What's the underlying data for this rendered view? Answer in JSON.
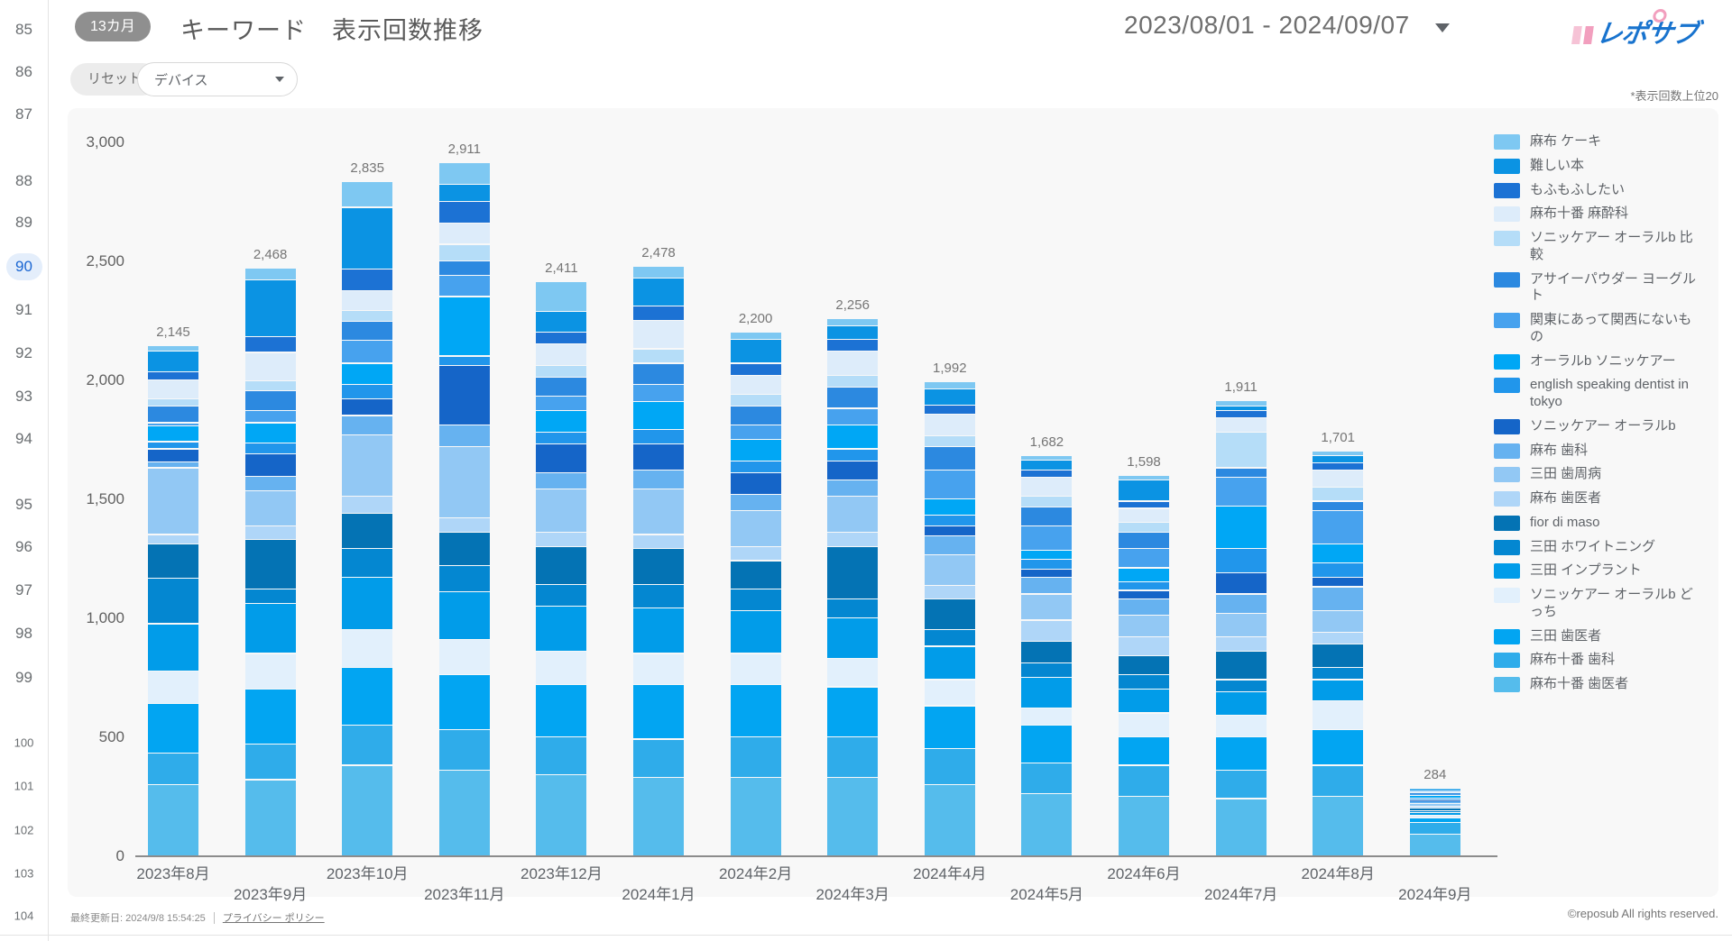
{
  "sidebar": {
    "pages": [
      "85",
      "86",
      "87",
      "88",
      "89",
      "90",
      "91",
      "92",
      "93",
      "94",
      "95",
      "96",
      "97",
      "98",
      "99",
      "100",
      "101",
      "102",
      "103",
      "104"
    ],
    "active_page": "90"
  },
  "header": {
    "badge": "13カ月",
    "title": "キーワード　表示回数推移",
    "date_range": "2023/08/01 - 2024/09/07",
    "brand": "レポサブ"
  },
  "controls": {
    "reset_label": "リセット",
    "device_label": "デバイス",
    "note": "*表示回数上位20"
  },
  "footer": {
    "last_updated": "最終更新日: 2024/9/8 15:54:25",
    "privacy_link": "プライバシー ポリシー",
    "copyright": "©reposub All rights reserved."
  },
  "chart_data": {
    "type": "bar",
    "stacked": true,
    "title": "キーワード 表示回数推移",
    "legend_position": "right",
    "grid": false,
    "ylim": [
      0,
      3000
    ],
    "yticks": [
      0,
      500,
      1000,
      1500,
      2000,
      2500,
      3000
    ],
    "categories": [
      "2023年8月",
      "2023年9月",
      "2023年10月",
      "2023年11月",
      "2023年12月",
      "2024年1月",
      "2024年2月",
      "2024年3月",
      "2024年4月",
      "2024年5月",
      "2024年6月",
      "2024年7月",
      "2024年8月",
      "2024年9月"
    ],
    "totals": [
      2145,
      2468,
      2835,
      2911,
      2411,
      2478,
      2200,
      2256,
      1992,
      1682,
      1598,
      1911,
      1701,
      284
    ],
    "stack_note": "values are visual estimates; bottom of each bar is the last series, top is the first series",
    "series": [
      {
        "name": "麻布 ケーキ",
        "color": "#7EC8F2",
        "values": [
          25,
          48,
          110,
          90,
          125,
          50,
          30,
          30,
          30,
          20,
          20,
          20,
          20,
          2
        ]
      },
      {
        "name": "難しい本",
        "color": "#0B93E3",
        "values": [
          85,
          240,
          260,
          70,
          86,
          118,
          100,
          56,
          67,
          40,
          88,
          21,
          31,
          3
        ]
      },
      {
        "name": "もふもふしたい",
        "color": "#1C72D4",
        "values": [
          35,
          65,
          90,
          91,
          50,
          60,
          50,
          50,
          40,
          32,
          30,
          30,
          30,
          3
        ]
      },
      {
        "name": "麻布十番 麻酔科",
        "color": "#DDECFA",
        "values": [
          80,
          120,
          85,
          90,
          90,
          120,
          80,
          100,
          90,
          80,
          60,
          60,
          70,
          4
        ]
      },
      {
        "name": "ソニッケアー オーラルb 比較",
        "color": "#B5DDF8",
        "values": [
          30,
          40,
          45,
          70,
          50,
          60,
          50,
          50,
          45,
          45,
          40,
          150,
          60,
          6
        ]
      },
      {
        "name": "アサイーパウダー ヨーグルト",
        "color": "#2C89E0",
        "values": [
          70,
          85,
          80,
          60,
          80,
          90,
          80,
          90,
          100,
          80,
          70,
          40,
          40,
          6
        ]
      },
      {
        "name": "関東にあって関西にないもの",
        "color": "#47A2EE",
        "values": [
          15,
          50,
          95,
          90,
          60,
          70,
          60,
          70,
          120,
          100,
          80,
          120,
          140,
          8
        ]
      },
      {
        "name": "オーラルb ソニッケアー",
        "color": "#00A7F5",
        "values": [
          65,
          85,
          90,
          250,
          90,
          120,
          90,
          100,
          70,
          40,
          60,
          180,
          80,
          10
        ]
      },
      {
        "name": "english speaking dentist in tokyo",
        "color": "#2196EB",
        "values": [
          30,
          45,
          60,
          40,
          50,
          60,
          50,
          50,
          45,
          40,
          35,
          100,
          60,
          6
        ]
      },
      {
        "name": "ソニッケアー オーラルb",
        "color": "#1565C8",
        "values": [
          55,
          95,
          70,
          250,
          120,
          110,
          90,
          80,
          40,
          35,
          35,
          90,
          40,
          6
        ]
      },
      {
        "name": "麻布 歯科",
        "color": "#66B2F0",
        "values": [
          25,
          60,
          80,
          90,
          70,
          80,
          70,
          70,
          80,
          70,
          70,
          80,
          100,
          10
        ]
      },
      {
        "name": "三田 歯周病",
        "color": "#92C8F4",
        "values": [
          280,
          150,
          260,
          300,
          180,
          190,
          150,
          150,
          130,
          110,
          90,
          100,
          90,
          12
        ]
      },
      {
        "name": "麻布 歯医者",
        "color": "#AFD6F8",
        "values": [
          40,
          55,
          70,
          60,
          60,
          60,
          60,
          60,
          55,
          90,
          80,
          60,
          50,
          8
        ]
      },
      {
        "name": "fior di maso",
        "color": "#0473B4",
        "values": [
          145,
          210,
          150,
          140,
          160,
          150,
          120,
          220,
          130,
          90,
          80,
          120,
          100,
          10
        ]
      },
      {
        "name": "三田 ホワイトニング",
        "color": "#0487D1",
        "values": [
          190,
          60,
          120,
          110,
          90,
          100,
          90,
          80,
          70,
          60,
          60,
          50,
          50,
          8
        ]
      },
      {
        "name": "三田 インプラント",
        "color": "#019CE9",
        "values": [
          200,
          210,
          220,
          200,
          190,
          190,
          180,
          170,
          140,
          130,
          100,
          100,
          90,
          12
        ]
      },
      {
        "name": "ソニッケアー オーラルb どっち",
        "color": "#E2F0FC",
        "values": [
          135,
          150,
          160,
          150,
          140,
          130,
          130,
          120,
          110,
          70,
          100,
          90,
          120,
          10
        ]
      },
      {
        "name": "三田 歯医者",
        "color": "#02A5F2",
        "values": [
          210,
          230,
          240,
          230,
          220,
          230,
          220,
          210,
          180,
          160,
          120,
          140,
          150,
          20
        ]
      },
      {
        "name": "麻布十番 歯科",
        "color": "#2FACEA",
        "values": [
          130,
          150,
          170,
          170,
          160,
          160,
          170,
          170,
          150,
          130,
          130,
          120,
          130,
          50
        ]
      },
      {
        "name": "麻布十番 歯医者",
        "color": "#55BCEC",
        "values": [
          300,
          320,
          380,
          360,
          340,
          330,
          330,
          330,
          300,
          260,
          250,
          240,
          250,
          90
        ]
      }
    ]
  }
}
